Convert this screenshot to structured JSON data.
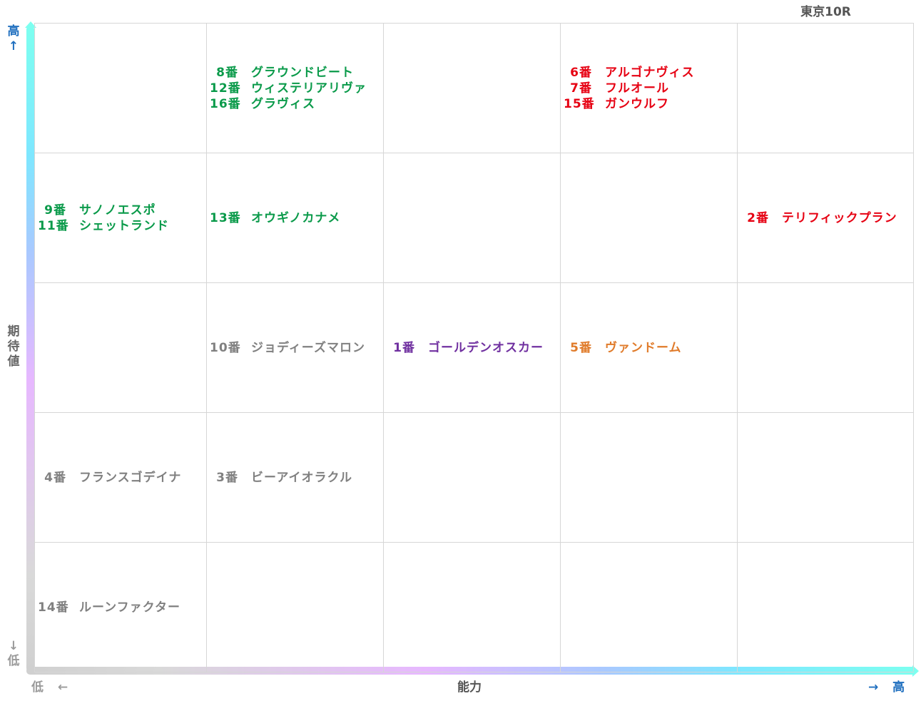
{
  "title": "東京10R",
  "chart_data": {
    "type": "table",
    "xlabel": "能力",
    "ylabel": "期待値",
    "x_low_label": "低",
    "x_high_label": "高",
    "y_low_label": "低",
    "y_high_label": "高",
    "x_levels": 5,
    "y_levels": 5,
    "colors": {
      "green": "#0a9a4a",
      "red": "#e60012",
      "gray": "#808080",
      "purple": "#7030a0",
      "orange": "#e07b2a",
      "axis_label_blue": "#1f6fbf",
      "axis_label_gray": "#9a9a9a"
    },
    "horses": [
      {
        "number": "1番",
        "name": "ゴールデンオスカー",
        "x": 3,
        "y": 3,
        "color": "purple"
      },
      {
        "number": "2番",
        "name": "テリフィックプラン",
        "x": 5,
        "y": 4,
        "color": "red"
      },
      {
        "number": "3番",
        "name": "ビーアイオラクル",
        "x": 2,
        "y": 2,
        "color": "gray"
      },
      {
        "number": "4番",
        "name": "フランスゴデイナ",
        "x": 1,
        "y": 2,
        "color": "gray"
      },
      {
        "number": "5番",
        "name": "ヴァンドーム",
        "x": 4,
        "y": 3,
        "color": "orange"
      },
      {
        "number": "6番",
        "name": "アルゴナヴィス",
        "x": 4,
        "y": 5,
        "color": "red"
      },
      {
        "number": "7番",
        "name": "フルオール",
        "x": 4,
        "y": 5,
        "color": "red"
      },
      {
        "number": "8番",
        "name": "グラウンドビート",
        "x": 2,
        "y": 5,
        "color": "green"
      },
      {
        "number": "9番",
        "name": "サノノエスポ",
        "x": 1,
        "y": 4,
        "color": "green"
      },
      {
        "number": "10番",
        "name": "ジョディーズマロン",
        "x": 2,
        "y": 3,
        "color": "gray"
      },
      {
        "number": "11番",
        "name": "シェットランド",
        "x": 1,
        "y": 4,
        "color": "green"
      },
      {
        "number": "12番",
        "name": "ウィステリアリヴァ",
        "x": 2,
        "y": 5,
        "color": "green"
      },
      {
        "number": "13番",
        "name": "オウギノカナメ",
        "x": 2,
        "y": 4,
        "color": "green"
      },
      {
        "number": "14番",
        "name": "ルーンファクター",
        "x": 1,
        "y": 1,
        "color": "gray"
      },
      {
        "number": "15番",
        "name": "ガンウルフ",
        "x": 4,
        "y": 5,
        "color": "red"
      },
      {
        "number": "16番",
        "name": "グラヴィス",
        "x": 2,
        "y": 5,
        "color": "green"
      }
    ]
  },
  "arrows": {
    "up": "↑",
    "down": "↓",
    "left": "←",
    "right": "→"
  }
}
